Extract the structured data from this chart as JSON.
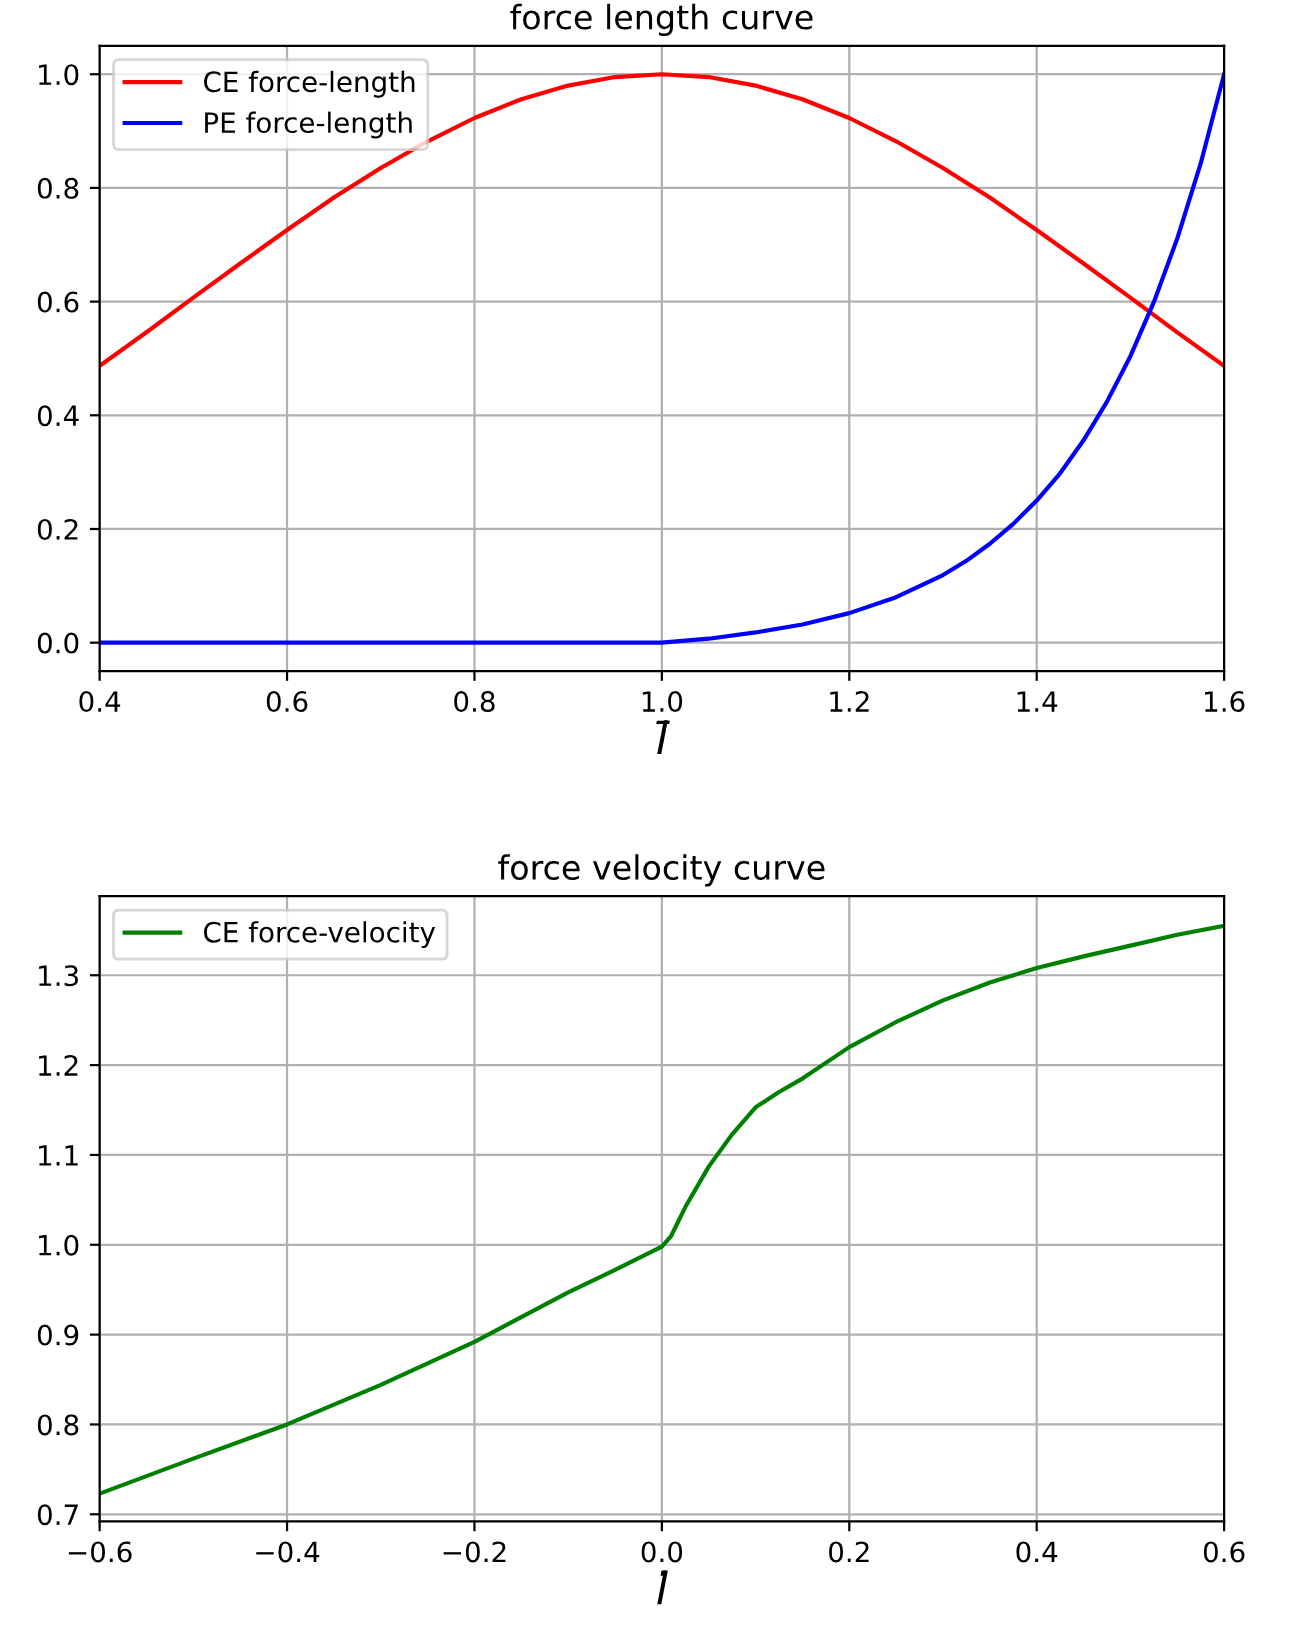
{
  "chart_data": [
    {
      "type": "line",
      "title": "force length curve",
      "xlabel": "l̄",
      "xlim": [
        0.4,
        1.6
      ],
      "xticks": [
        {
          "value": 0.4,
          "label": "0.4"
        },
        {
          "value": 0.6,
          "label": "0.6"
        },
        {
          "value": 0.8,
          "label": "0.8"
        },
        {
          "value": 1.0,
          "label": "1.0"
        },
        {
          "value": 1.2,
          "label": "1.2"
        },
        {
          "value": 1.4,
          "label": "1.4"
        },
        {
          "value": 1.6,
          "label": "1.6"
        }
      ],
      "ylim": [
        -0.05,
        1.05
      ],
      "yticks": [
        {
          "value": 0,
          "label": "0.0"
        },
        {
          "value": 0.2,
          "label": "0.2"
        },
        {
          "value": 0.4,
          "label": "0.4"
        },
        {
          "value": 0.6,
          "label": "0.6"
        },
        {
          "value": 0.8,
          "label": "0.8"
        },
        {
          "value": 1.0,
          "label": "1.0"
        }
      ],
      "grid": true,
      "legend": "top left",
      "series": [
        {
          "name": "CE force-length",
          "color": "#ff0000",
          "x": [
            0.4,
            0.45,
            0.5,
            0.55,
            0.6,
            0.65,
            0.7,
            0.75,
            0.8,
            0.85,
            0.9,
            0.95,
            1.0,
            1.05,
            1.1,
            1.15,
            1.2,
            1.25,
            1.3,
            1.35,
            1.4,
            1.45,
            1.5,
            1.55,
            1.6
          ],
          "values": [
            0.487,
            0.546,
            0.607,
            0.667,
            0.726,
            0.783,
            0.835,
            0.882,
            0.923,
            0.956,
            0.98,
            0.995,
            1.0,
            0.995,
            0.98,
            0.956,
            0.923,
            0.882,
            0.835,
            0.783,
            0.726,
            0.667,
            0.607,
            0.546,
            0.487
          ]
        },
        {
          "name": "PE force-length",
          "color": "#0000ff",
          "x": [
            0.4,
            0.6,
            0.8,
            1.0,
            1.05,
            1.1,
            1.15,
            1.2,
            1.25,
            1.3,
            1.325,
            1.35,
            1.375,
            1.4,
            1.425,
            1.45,
            1.475,
            1.5,
            1.525,
            1.55,
            1.575,
            1.6
          ],
          "values": [
            0,
            0,
            0,
            0,
            0.007,
            0.018,
            0.032,
            0.052,
            0.08,
            0.119,
            0.144,
            0.174,
            0.209,
            0.25,
            0.298,
            0.356,
            0.424,
            0.504,
            0.599,
            0.711,
            0.843,
            1.0
          ]
        }
      ]
    },
    {
      "type": "line",
      "title": "force velocity curve",
      "xlabel": "l̇",
      "xlim": [
        -0.6,
        0.6
      ],
      "xticks": [
        {
          "value": -0.6,
          "label": "−0.6"
        },
        {
          "value": -0.4,
          "label": "−0.4"
        },
        {
          "value": -0.2,
          "label": "−0.2"
        },
        {
          "value": 0,
          "label": "0.0"
        },
        {
          "value": 0.2,
          "label": "0.2"
        },
        {
          "value": 0.4,
          "label": "0.4"
        },
        {
          "value": 0.6,
          "label": "0.6"
        }
      ],
      "ylim": [
        0.692,
        1.388
      ],
      "yticks": [
        0.7,
        0.8,
        0.9,
        {
          "value": 1.0,
          "label": "1.0"
        },
        1.1,
        1.2,
        1.3
      ],
      "grid": true,
      "legend": "top left",
      "series": [
        {
          "name": "CE force-velocity",
          "color": "#008000",
          "x": [
            -0.6,
            -0.5,
            -0.4,
            -0.3,
            -0.2,
            -0.1,
            -0.05,
            0,
            0.01,
            0.025,
            0.05,
            0.075,
            0.1,
            0.125,
            0.15,
            0.2,
            0.25,
            0.3,
            0.35,
            0.4,
            0.45,
            0.5,
            0.55,
            0.6
          ],
          "values": [
            0.723,
            0.762,
            0.8,
            0.844,
            0.892,
            0.947,
            0.972,
            0.998,
            1.01,
            1.042,
            1.087,
            1.123,
            1.153,
            1.17,
            1.185,
            1.22,
            1.248,
            1.272,
            1.292,
            1.308,
            1.321,
            1.333,
            1.345,
            1.355
          ]
        }
      ]
    }
  ]
}
